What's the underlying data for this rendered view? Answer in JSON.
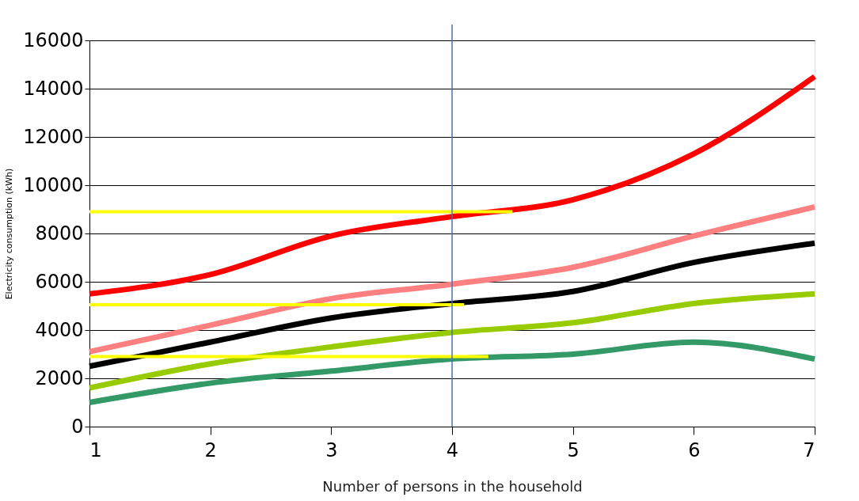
{
  "chart_data": {
    "type": "line",
    "xlabel": "Number of persons in the household",
    "ylabel": "Electricity consumption (kWh)",
    "x": [
      1,
      2,
      3,
      4,
      5,
      6,
      7
    ],
    "series": [
      {
        "color": "#ff0000",
        "values": [
          5500,
          6300,
          7900,
          8700,
          9400,
          11300,
          14500
        ]
      },
      {
        "color": "#ff8080",
        "values": [
          3100,
          4200,
          5300,
          5900,
          6600,
          7900,
          9100
        ]
      },
      {
        "color": "#000000",
        "values": [
          2500,
          3500,
          4500,
          5100,
          5600,
          6800,
          7600
        ]
      },
      {
        "color": "#99cc00",
        "values": [
          1600,
          2600,
          3300,
          3900,
          4300,
          5100,
          5500
        ]
      },
      {
        "color": "#339966",
        "values": [
          1000,
          1800,
          2300,
          2800,
          3000,
          3500,
          2800
        ]
      },
      {
        "type": "line",
        "color": "#ffff00",
        "x": [
          1,
          4.5
        ],
        "values": [
          8900,
          8900
        ]
      },
      {
        "type": "line",
        "color": "#ffff00",
        "x": [
          1,
          4.1
        ],
        "values": [
          5050,
          5050
        ]
      },
      {
        "type": "line",
        "color": "#ffff00",
        "x": [
          1,
          4.3
        ],
        "values": [
          2900,
          2900
        ]
      }
    ],
    "ref_lines": [
      {
        "axis": "x",
        "value": 4,
        "color": "#4a6fb5"
      }
    ],
    "xlim": [
      1,
      7
    ],
    "xticks": [
      1,
      2,
      3,
      4,
      5,
      6,
      7
    ],
    "ylim": [
      0,
      16000
    ],
    "yticks": [
      0,
      2000,
      4000,
      6000,
      8000,
      10000,
      12000,
      14000,
      16000
    ],
    "grid": "y",
    "legend": false
  }
}
